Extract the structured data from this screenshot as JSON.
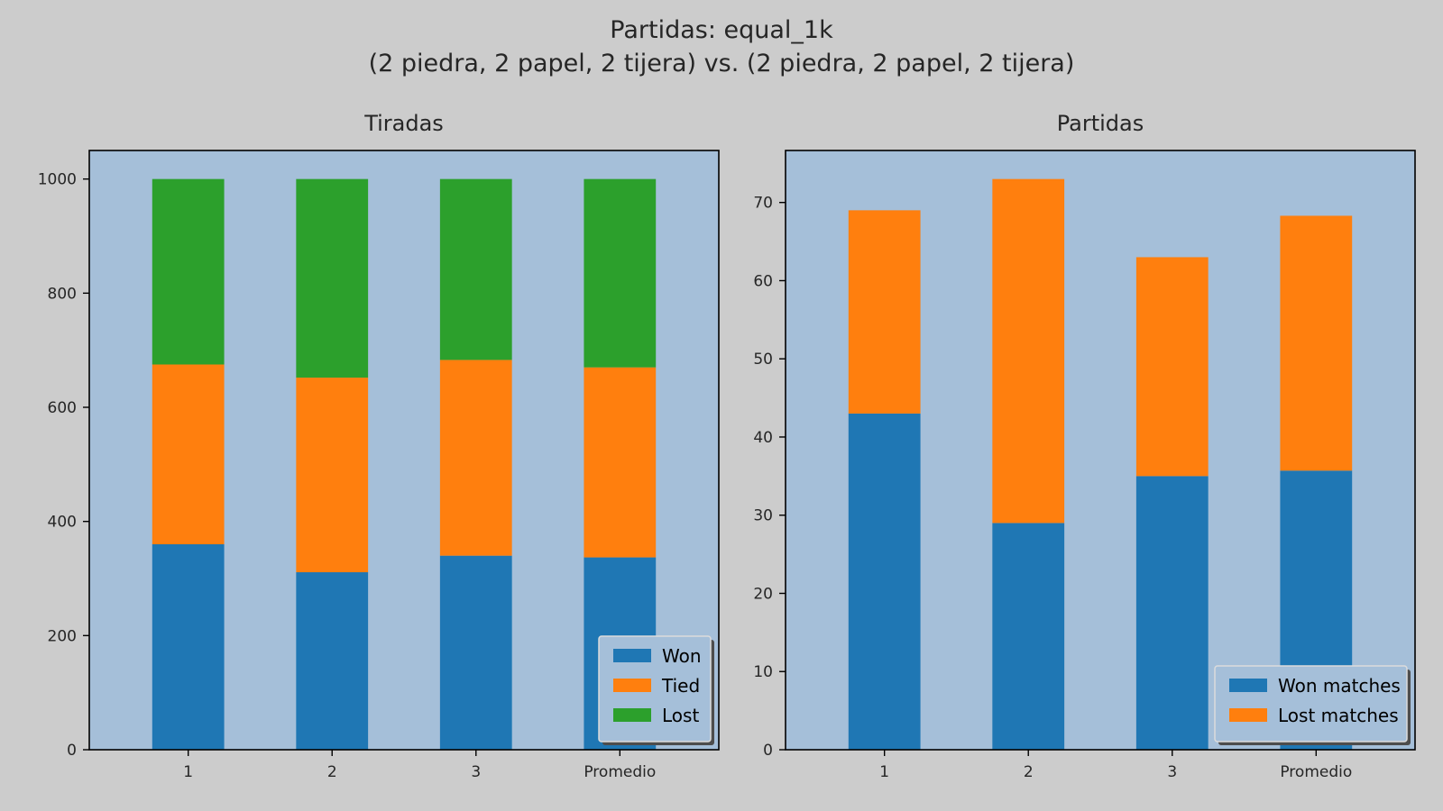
{
  "figure": {
    "title_line1": "Partidas: equal_1k",
    "title_line2": "(2 piedra, 2 papel, 2 tijera) vs. (2 piedra, 2 papel, 2 tijera)",
    "background": "#cccccc",
    "axes_background": "#a5bfd9"
  },
  "chart_data": [
    {
      "type": "bar",
      "stacked": true,
      "title": "Tiradas",
      "xlabel": "",
      "ylabel": "",
      "categories": [
        "1",
        "2",
        "3",
        "Promedio"
      ],
      "ylim": [
        0,
        1050
      ],
      "yticks": [
        0,
        200,
        400,
        600,
        800,
        1000
      ],
      "grid": false,
      "legend_position": "lower-right",
      "series": [
        {
          "name": "Won",
          "color": "#1f77b4",
          "values": [
            360,
            311,
            340,
            337
          ]
        },
        {
          "name": "Tied",
          "color": "#ff7f0e",
          "values": [
            315,
            341,
            343,
            333
          ]
        },
        {
          "name": "Lost",
          "color": "#2ca02c",
          "values": [
            325,
            348,
            317,
            330
          ]
        }
      ]
    },
    {
      "type": "bar",
      "stacked": true,
      "title": "Partidas",
      "xlabel": "",
      "ylabel": "",
      "categories": [
        "1",
        "2",
        "3",
        "Promedio"
      ],
      "ylim": [
        0,
        76.65
      ],
      "yticks": [
        0,
        10,
        20,
        30,
        40,
        50,
        60,
        70
      ],
      "grid": false,
      "legend_position": "lower-right",
      "series": [
        {
          "name": "Won matches",
          "color": "#1f77b4",
          "values": [
            43,
            29,
            35,
            35.7
          ]
        },
        {
          "name": "Lost matches",
          "color": "#ff7f0e",
          "values": [
            26,
            44,
            28,
            32.6
          ]
        }
      ]
    }
  ]
}
